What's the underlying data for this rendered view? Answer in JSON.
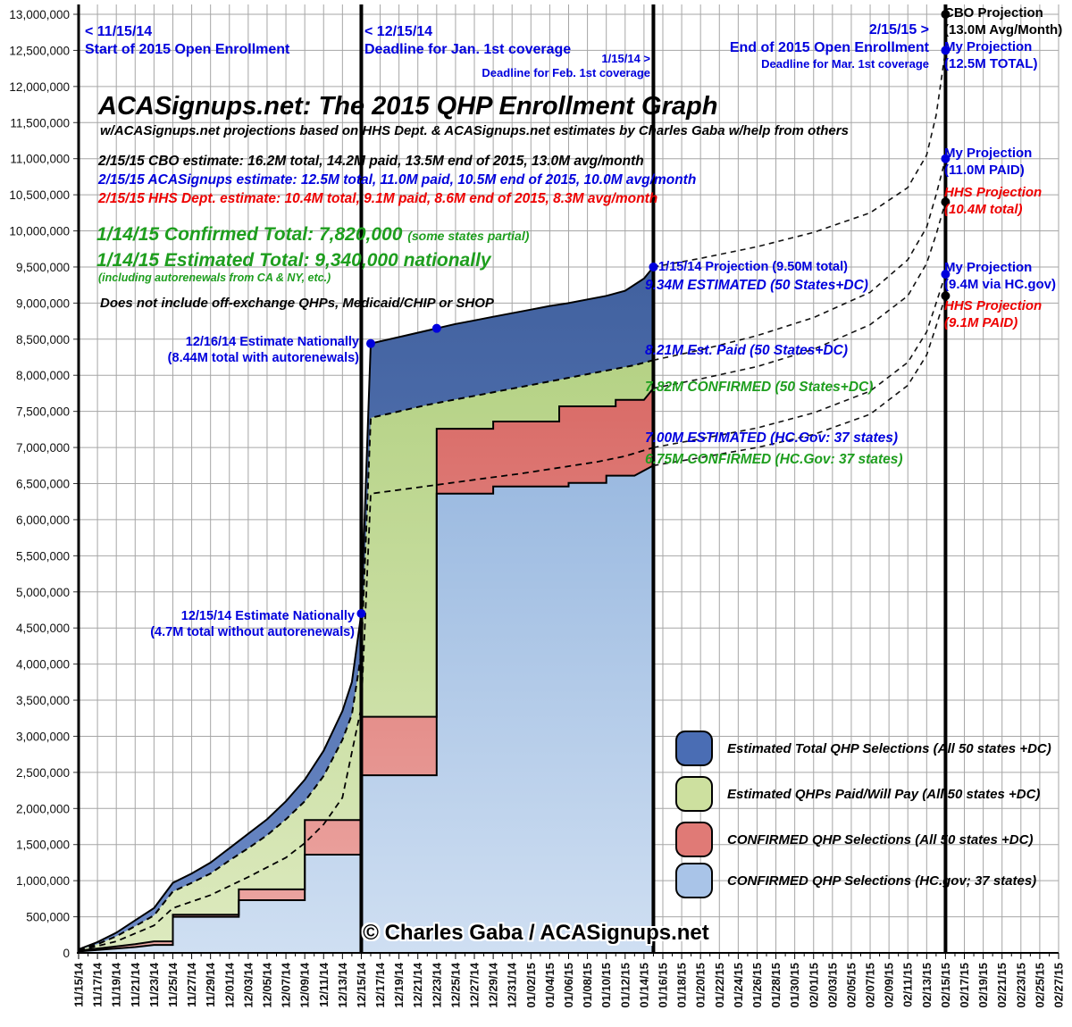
{
  "header": {
    "title": "ACASignups.net: The 2015 QHP Enrollment Graph",
    "subtitle": "w/ACASignups.net projections based on HHS Dept. & ACASignups.net estimates by Charles Gaba w/help from others"
  },
  "estimates": [
    {
      "text": "2/15/15 CBO estimate: 16.2M total, 14.2M paid, 13.5M end of 2015, 13.0M avg/month",
      "color": "#000000"
    },
    {
      "text": "2/15/15 ACASignups estimate: 12.5M total, 11.0M paid, 10.5M end of 2015, 10.0M avg/month",
      "color": "#0000dd"
    },
    {
      "text": "2/15/15 HHS Dept. estimate: 10.4M total, 9.1M paid, 8.6M end of 2015, 8.3M avg/month",
      "color": "#ee0000"
    }
  ],
  "totals": {
    "confirmed": "1/14/15 Confirmed Total: 7,820,000",
    "confirmed_note": "(some states partial)",
    "estimated": "1/14/15 Estimated Total: 9,340,000 nationally",
    "estimated_note": "(including autorenewals from CA & NY, etc.)",
    "disclaimer": "Does not include off-exchange QHPs, Medicaid/CHIP or SHOP"
  },
  "milestones": {
    "m1_date": "< 11/15/14",
    "m1_text": "Start of 2015 Open Enrollment",
    "m2_date": "< 12/15/14",
    "m2_text": "Deadline for Jan. 1st coverage",
    "m3_date": "1/15/14 >",
    "m3_text": "Deadline for Feb. 1st coverage",
    "m4_date": "2/15/15 >",
    "m4_text": "End of 2015 Open Enrollment",
    "m4_sub": "Deadline for Mar. 1st coverage"
  },
  "projection_labels": {
    "cbo_1": "CBO Projection",
    "cbo_2": "(13.0M Avg/Month)",
    "my_total_1": "My Projection",
    "my_total_2": "(12.5M TOTAL)",
    "my_paid_1": "My Projection",
    "my_paid_2": "(11.0M PAID)",
    "hhs_total_1": "HHS Projection",
    "hhs_total_2": "(10.4M total)",
    "my_hcgov_1": "My Projection",
    "my_hcgov_2": "(9.4M via HC.gov)",
    "hhs_paid_1": "HHS Projection",
    "hhs_paid_2": "(9.1M PAID)"
  },
  "point_labels": {
    "est_1216_1": "12/16/14 Estimate Nationally",
    "est_1216_2": "(8.44M total with autorenewals)",
    "est_1215_1": "12/15/14 Estimate Nationally",
    "est_1215_2": "(4.7M total without autorenewals)",
    "proj_0115": "1/15/14 Projection (9.50M total)",
    "lbl_934": "9.34M ESTIMATED (50 States+DC)",
    "lbl_821": "8.21M Est. Paid (50 States+DC)",
    "lbl_782": "7.82M CONFIRMED (50 States+DC)",
    "lbl_700": "7.00M ESTIMATED (HC.Gov: 37 states)",
    "lbl_675": "6.75M CONFIRMED (HC.Gov: 37 states)"
  },
  "legend": {
    "items": [
      {
        "label": "Estimated Total QHP Selections (All 50 states +DC)",
        "color": "#4a6db4"
      },
      {
        "label": "Estimated QHPs Paid/Will Pay (All 50 states +DC)",
        "color": "#cde09f"
      },
      {
        "label": "CONFIRMED QHP Selections (All 50 states +DC)",
        "color": "#e07a76"
      },
      {
        "label": "CONFIRMED QHP Selections (HC.gov; 37 states)",
        "color": "#a9c4e8"
      }
    ]
  },
  "watermark": "© Charles Gaba / ACASignups.net",
  "palette": {
    "annotation_blue": "#0000dd",
    "annotation_red": "#ee0000",
    "annotation_green": "#1e9e1e",
    "grid_gray": "#a6a6a6",
    "area_blue": "#4a6db4",
    "area_green": "#cde09f",
    "area_red": "#e07a76",
    "area_lightblue": "#a9c4e8"
  },
  "chart_data": {
    "type": "area",
    "value_unit": "millions of QHP enrollments",
    "x_axis": {
      "start": "11/15/14",
      "end": "02/27/15",
      "total_days": 104,
      "tick_every_days": 2,
      "tick_labels": [
        "11/15/14",
        "11/17/14",
        "11/19/14",
        "11/21/14",
        "11/23/14",
        "11/25/14",
        "11/27/14",
        "11/29/14",
        "12/01/14",
        "12/03/14",
        "12/05/14",
        "12/07/14",
        "12/09/14",
        "12/11/14",
        "12/13/14",
        "12/15/14",
        "12/17/14",
        "12/19/14",
        "12/21/14",
        "12/23/14",
        "12/25/14",
        "12/27/14",
        "12/29/14",
        "12/31/14",
        "01/02/15",
        "01/04/15",
        "01/06/15",
        "01/08/15",
        "01/10/15",
        "01/12/15",
        "01/14/15",
        "01/16/15",
        "01/18/15",
        "01/20/15",
        "01/22/15",
        "01/24/15",
        "01/26/15",
        "01/28/15",
        "01/30/15",
        "02/01/15",
        "02/03/15",
        "02/05/15",
        "02/07/15",
        "02/09/15",
        "02/11/15",
        "02/13/15",
        "02/15/15",
        "02/17/15",
        "02/19/15",
        "02/21/15",
        "02/23/15",
        "02/25/15",
        "02/27/15"
      ]
    },
    "y_axis": {
      "min": 0,
      "max": 13000000,
      "step": 500000,
      "tick_labels": [
        "0",
        "500,000",
        "1,000,000",
        "1,500,000",
        "2,000,000",
        "2,500,000",
        "3,000,000",
        "3,500,000",
        "4,000,000",
        "4,500,000",
        "5,000,000",
        "5,500,000",
        "6,000,000",
        "6,500,000",
        "7,000,000",
        "7,500,000",
        "8,000,000",
        "8,500,000",
        "9,000,000",
        "9,500,000",
        "10,000,000",
        "10,500,000",
        "11,000,000",
        "11,500,000",
        "12,000,000",
        "12,500,000",
        "13,000,000"
      ]
    },
    "key_vlines_days": [
      30,
      61,
      92
    ],
    "series": [
      {
        "name": "Estimated Total QHP Selections (All 50 states +DC)",
        "kind": "area",
        "color": "#4a6db4",
        "line": "solid",
        "points": [
          [
            0,
            0.05
          ],
          [
            2,
            0.15
          ],
          [
            4,
            0.28
          ],
          [
            6,
            0.45
          ],
          [
            8,
            0.62
          ],
          [
            10,
            0.97
          ],
          [
            12,
            1.1
          ],
          [
            14,
            1.25
          ],
          [
            16,
            1.45
          ],
          [
            18,
            1.65
          ],
          [
            20,
            1.85
          ],
          [
            22,
            2.1
          ],
          [
            24,
            2.4
          ],
          [
            26,
            2.8
          ],
          [
            28,
            3.35
          ],
          [
            29,
            3.75
          ],
          [
            30,
            4.7
          ],
          [
            31,
            8.44
          ],
          [
            33,
            8.5
          ],
          [
            35,
            8.56
          ],
          [
            37,
            8.62
          ],
          [
            38,
            8.65
          ],
          [
            40,
            8.71
          ],
          [
            42,
            8.76
          ],
          [
            44,
            8.81
          ],
          [
            46,
            8.86
          ],
          [
            48,
            8.91
          ],
          [
            50,
            8.96
          ],
          [
            52,
            9.0
          ],
          [
            54,
            9.05
          ],
          [
            56,
            9.1
          ],
          [
            58,
            9.17
          ],
          [
            60,
            9.34
          ],
          [
            61,
            9.5
          ]
        ]
      },
      {
        "name": "Estimated QHPs Paid/Will Pay (All 50 states +DC)",
        "kind": "area",
        "color": "#cde09f",
        "line": "dashed",
        "points": [
          [
            0,
            0.04
          ],
          [
            2,
            0.12
          ],
          [
            4,
            0.23
          ],
          [
            6,
            0.37
          ],
          [
            8,
            0.52
          ],
          [
            10,
            0.85
          ],
          [
            12,
            0.97
          ],
          [
            14,
            1.1
          ],
          [
            16,
            1.28
          ],
          [
            18,
            1.45
          ],
          [
            20,
            1.63
          ],
          [
            22,
            1.85
          ],
          [
            24,
            2.1
          ],
          [
            26,
            2.45
          ],
          [
            28,
            2.95
          ],
          [
            29,
            3.3
          ],
          [
            30,
            4.15
          ],
          [
            31,
            7.41
          ],
          [
            33,
            7.47
          ],
          [
            35,
            7.53
          ],
          [
            37,
            7.59
          ],
          [
            39,
            7.64
          ],
          [
            41,
            7.69
          ],
          [
            43,
            7.74
          ],
          [
            45,
            7.79
          ],
          [
            47,
            7.84
          ],
          [
            49,
            7.89
          ],
          [
            51,
            7.94
          ],
          [
            53,
            7.99
          ],
          [
            55,
            8.04
          ],
          [
            57,
            8.09
          ],
          [
            59,
            8.14
          ],
          [
            61,
            8.21
          ]
        ]
      },
      {
        "name": "CONFIRMED QHP Selections (All 50 states +DC)",
        "kind": "area",
        "color": "#e07a76",
        "line": "solid",
        "points": [
          [
            0,
            0.03
          ],
          [
            2,
            0.06
          ],
          [
            4,
            0.09
          ],
          [
            6,
            0.12
          ],
          [
            8,
            0.16
          ],
          [
            10,
            0.16
          ],
          [
            10,
            0.53
          ],
          [
            17,
            0.53
          ],
          [
            17,
            0.88
          ],
          [
            24,
            0.88
          ],
          [
            24,
            1.84
          ],
          [
            30,
            1.84
          ],
          [
            30,
            3.27
          ],
          [
            38,
            3.27
          ],
          [
            38,
            7.26
          ],
          [
            44,
            7.26
          ],
          [
            44,
            7.36
          ],
          [
            51,
            7.36
          ],
          [
            51,
            7.57
          ],
          [
            57,
            7.57
          ],
          [
            57,
            7.66
          ],
          [
            60,
            7.66
          ],
          [
            61,
            7.82
          ]
        ]
      },
      {
        "name": "CONFIRMED QHP Selections (HC.gov; 37 states)",
        "kind": "area",
        "color": "#a9c4e8",
        "line": "solid",
        "points": [
          [
            0,
            0.02
          ],
          [
            2,
            0.04
          ],
          [
            4,
            0.06
          ],
          [
            6,
            0.08
          ],
          [
            8,
            0.11
          ],
          [
            10,
            0.11
          ],
          [
            10,
            0.5
          ],
          [
            17,
            0.5
          ],
          [
            17,
            0.73
          ],
          [
            24,
            0.73
          ],
          [
            24,
            1.36
          ],
          [
            30,
            1.36
          ],
          [
            30,
            2.46
          ],
          [
            38,
            2.46
          ],
          [
            38,
            6.36
          ],
          [
            44,
            6.36
          ],
          [
            44,
            6.46
          ],
          [
            52,
            6.46
          ],
          [
            52,
            6.51
          ],
          [
            56,
            6.51
          ],
          [
            56,
            6.61
          ],
          [
            59,
            6.61
          ],
          [
            61,
            6.75
          ]
        ]
      },
      {
        "name": "Estimated HC.gov QHP selections",
        "kind": "line",
        "color": "#000000",
        "line": "dashed",
        "points": [
          [
            0,
            0.03
          ],
          [
            4,
            0.16
          ],
          [
            8,
            0.38
          ],
          [
            10,
            0.62
          ],
          [
            14,
            0.8
          ],
          [
            18,
            1.05
          ],
          [
            22,
            1.32
          ],
          [
            24,
            1.52
          ],
          [
            26,
            1.78
          ],
          [
            28,
            2.15
          ],
          [
            30,
            3.4
          ],
          [
            31,
            6.36
          ],
          [
            35,
            6.43
          ],
          [
            39,
            6.5
          ],
          [
            43,
            6.57
          ],
          [
            47,
            6.64
          ],
          [
            51,
            6.72
          ],
          [
            55,
            6.8
          ],
          [
            58,
            6.88
          ],
          [
            61,
            7.0
          ]
        ]
      }
    ],
    "projections": [
      {
        "name": "My Projection (12.5M TOTAL)",
        "points": [
          [
            61,
            9.5
          ],
          [
            66,
            9.62
          ],
          [
            72,
            9.78
          ],
          [
            78,
            9.98
          ],
          [
            84,
            10.25
          ],
          [
            88,
            10.6
          ],
          [
            90,
            11.05
          ],
          [
            91,
            11.6
          ],
          [
            92,
            12.5
          ]
        ]
      },
      {
        "name": "My Projection (11.0M PAID)",
        "points": [
          [
            61,
            8.21
          ],
          [
            66,
            8.35
          ],
          [
            72,
            8.55
          ],
          [
            78,
            8.8
          ],
          [
            84,
            9.15
          ],
          [
            88,
            9.6
          ],
          [
            90,
            10.05
          ],
          [
            91,
            10.5
          ],
          [
            92,
            11.0
          ]
        ]
      },
      {
        "name": "HHS Projection (10.4M total)",
        "points": [
          [
            61,
            7.82
          ],
          [
            66,
            7.95
          ],
          [
            72,
            8.12
          ],
          [
            78,
            8.36
          ],
          [
            84,
            8.7
          ],
          [
            88,
            9.1
          ],
          [
            90,
            9.55
          ],
          [
            91,
            9.95
          ],
          [
            92,
            10.4
          ]
        ]
      },
      {
        "name": "My Projection (9.4M via HC.gov)",
        "points": [
          [
            61,
            7.0
          ],
          [
            66,
            7.12
          ],
          [
            72,
            7.27
          ],
          [
            78,
            7.48
          ],
          [
            84,
            7.78
          ],
          [
            88,
            8.18
          ],
          [
            90,
            8.6
          ],
          [
            91,
            9.0
          ],
          [
            92,
            9.4
          ]
        ]
      },
      {
        "name": "HHS Projection (9.1M PAID)",
        "points": [
          [
            61,
            6.75
          ],
          [
            66,
            6.86
          ],
          [
            72,
            7.0
          ],
          [
            78,
            7.18
          ],
          [
            84,
            7.46
          ],
          [
            88,
            7.86
          ],
          [
            90,
            8.28
          ],
          [
            91,
            8.68
          ],
          [
            92,
            9.1
          ]
        ]
      }
    ],
    "dots": [
      {
        "day": 30,
        "value": 4.7,
        "color": "#0000dd"
      },
      {
        "day": 31,
        "value": 8.44,
        "color": "#0000dd"
      },
      {
        "day": 38,
        "value": 8.65,
        "color": "#0000dd"
      },
      {
        "day": 61,
        "value": 9.5,
        "color": "#0000dd"
      },
      {
        "day": 92,
        "value": 13.0,
        "color": "#000000"
      },
      {
        "day": 92,
        "value": 12.5,
        "color": "#0000dd"
      },
      {
        "day": 92,
        "value": 11.0,
        "color": "#0000dd"
      },
      {
        "day": 92,
        "value": 10.4,
        "color": "#000000"
      },
      {
        "day": 92,
        "value": 9.4,
        "color": "#0000dd"
      },
      {
        "day": 92,
        "value": 9.1,
        "color": "#000000"
      }
    ]
  }
}
